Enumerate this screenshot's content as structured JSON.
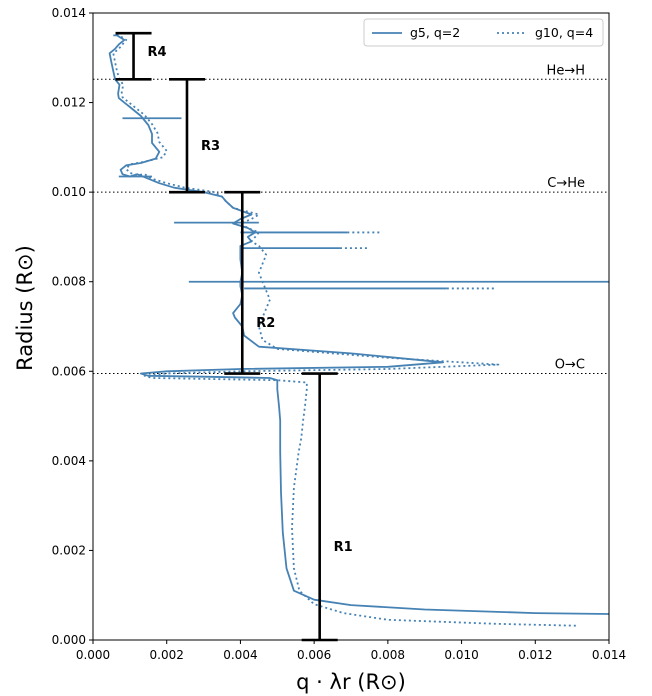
{
  "chart_data": {
    "type": "line",
    "xlabel": "q · λr (R⊙)",
    "ylabel": "Radius (R⊙)",
    "xlim": [
      0,
      0.014
    ],
    "ylim": [
      0,
      0.014
    ],
    "xticks": [
      "0.000",
      "0.002",
      "0.004",
      "0.006",
      "0.008",
      "0.010",
      "0.012",
      "0.014"
    ],
    "yticks": [
      "0.000",
      "0.002",
      "0.004",
      "0.006",
      "0.008",
      "0.010",
      "0.012",
      "0.014"
    ],
    "color": "#4682b4",
    "legend": {
      "placement": "top-right",
      "solid_label": "g5, q=2",
      "dotted_label": "g10, q=4"
    },
    "transitions": [
      {
        "label": "He→H",
        "y": 0.01252
      },
      {
        "label": "C→He",
        "y": 0.01
      },
      {
        "label": "O→C",
        "y": 0.00595
      }
    ],
    "regions": [
      {
        "label": "R1",
        "x": 0.00615,
        "y_bottom": 0.0,
        "y_top": 0.00595,
        "label_y": 0.0021
      },
      {
        "label": "R2",
        "x": 0.00405,
        "y_bottom": 0.00595,
        "y_top": 0.01,
        "label_y": 0.0071
      },
      {
        "label": "R3",
        "x": 0.00255,
        "y_bottom": 0.01,
        "y_top": 0.01252,
        "label_y": 0.01105
      },
      {
        "label": "R4",
        "x": 0.0011,
        "y_bottom": 0.01252,
        "y_top": 0.01355,
        "label_y": 0.01315
      }
    ],
    "series": [
      {
        "name": "g5, q=2",
        "style": "solid",
        "x": [
          0.014,
          0.012,
          0.009,
          0.007,
          0.006,
          0.00545,
          0.00525,
          0.00515,
          0.0051,
          0.00508,
          0.00508,
          0.00508,
          0.00505,
          0.005,
          0.005,
          0.0048,
          0.003,
          0.0015,
          0.0013,
          0.002,
          0.004,
          0.008,
          0.0095,
          0.007,
          0.0045,
          0.0041,
          0.00405,
          0.00385,
          0.0038,
          0.004,
          0.00405,
          0.004,
          0.004,
          0.00405,
          0.004,
          0.004,
          0.0043,
          0.0042,
          0.0044,
          0.0042,
          0.0038,
          0.004,
          0.0043,
          0.0038,
          0.0036,
          0.0035,
          0.003,
          0.0022,
          0.0018,
          0.0015,
          0.0012,
          0.001,
          0.0008,
          0.00075,
          0.0009,
          0.0013,
          0.0017,
          0.0018,
          0.0016,
          0.0016,
          0.0015,
          0.0014,
          0.0013,
          0.00115,
          0.001,
          0.00085,
          0.0007,
          0.00068,
          0.00072,
          0.0006,
          0.00055,
          0.0005,
          0.00045,
          0.0006,
          0.0007,
          0.00085,
          0.00075,
          0.00065,
          0.0006,
          0.00055
        ],
        "y": [
          0.00058,
          0.0006,
          0.00068,
          0.00078,
          0.0009,
          0.0011,
          0.0016,
          0.0024,
          0.0033,
          0.0042,
          0.0045,
          0.0049,
          0.0052,
          0.0056,
          0.0058,
          0.00585,
          0.00588,
          0.0059,
          0.00595,
          0.006,
          0.00605,
          0.0061,
          0.0062,
          0.0064,
          0.00655,
          0.0068,
          0.007,
          0.0072,
          0.0073,
          0.0075,
          0.0077,
          0.0079,
          0.008,
          0.0082,
          0.0085,
          0.0088,
          0.0089,
          0.009,
          0.0091,
          0.0092,
          0.0093,
          0.0094,
          0.0095,
          0.00965,
          0.0098,
          0.0099,
          0.01,
          0.0101,
          0.0102,
          0.0103,
          0.0104,
          0.01035,
          0.0104,
          0.0105,
          0.0106,
          0.01065,
          0.01075,
          0.0109,
          0.0111,
          0.0113,
          0.0115,
          0.0116,
          0.0117,
          0.0118,
          0.0119,
          0.012,
          0.0121,
          0.0122,
          0.0124,
          0.01252,
          0.0127,
          0.0129,
          0.0131,
          0.0132,
          0.0133,
          0.0134,
          0.01345,
          0.0135,
          0.0135,
          0.0135
        ]
      },
      {
        "name": "g10, q=4",
        "style": "dotted",
        "x": [
          0.0131,
          0.011,
          0.008,
          0.0068,
          0.006,
          0.0056,
          0.00545,
          0.0054,
          0.00545,
          0.00558,
          0.00565,
          0.0057,
          0.00575,
          0.0058,
          0.0058,
          0.005,
          0.003,
          0.0016,
          0.0014,
          0.002,
          0.004,
          0.008,
          0.011,
          0.008,
          0.005,
          0.0046,
          0.0045,
          0.0046,
          0.0047,
          0.0048,
          0.0047,
          0.0046,
          0.0045,
          0.0046,
          0.0047,
          0.0045,
          0.0043,
          0.0044,
          0.0045,
          0.0042,
          0.004,
          0.0043,
          0.0045,
          0.0038,
          0.0036,
          0.0035,
          0.0033,
          0.0025,
          0.002,
          0.0016,
          0.0014,
          0.0012,
          0.001,
          0.0009,
          0.001,
          0.0014,
          0.0019,
          0.002,
          0.0018,
          0.00175,
          0.0016,
          0.0015,
          0.0014,
          0.00125,
          0.0011,
          0.00095,
          0.0008,
          0.00078,
          0.00082,
          0.00072,
          0.00065,
          0.0006,
          0.00055,
          0.0007,
          0.0008,
          0.0009,
          0.0008,
          0.00072,
          0.00068,
          0.00065
        ],
        "y": [
          0.00032,
          0.00036,
          0.00045,
          0.0006,
          0.0008,
          0.0011,
          0.0016,
          0.0025,
          0.0034,
          0.0042,
          0.0045,
          0.0049,
          0.0052,
          0.0056,
          0.00575,
          0.0058,
          0.00583,
          0.00585,
          0.0059,
          0.00595,
          0.006,
          0.00605,
          0.00615,
          0.0063,
          0.0065,
          0.0067,
          0.007,
          0.0072,
          0.0074,
          0.0076,
          0.0078,
          0.008,
          0.0082,
          0.0084,
          0.0086,
          0.0088,
          0.0089,
          0.009,
          0.0091,
          0.0092,
          0.0093,
          0.0094,
          0.0095,
          0.00965,
          0.0098,
          0.0099,
          0.01,
          0.0101,
          0.0102,
          0.0103,
          0.0104,
          0.01038,
          0.01043,
          0.01052,
          0.01062,
          0.01068,
          0.01078,
          0.01092,
          0.01112,
          0.01132,
          0.01152,
          0.01162,
          0.01172,
          0.01182,
          0.01192,
          0.01202,
          0.01212,
          0.01222,
          0.0124,
          0.01252,
          0.0127,
          0.0129,
          0.0131,
          0.0132,
          0.0133,
          0.0134,
          0.01345,
          0.0135,
          0.0135,
          0.0135
        ]
      }
    ],
    "spikes": [
      {
        "style": "solid",
        "y": 0.008,
        "x_start": 0.0026,
        "x_end": 0.014
      },
      {
        "style": "solid",
        "y": 0.00785,
        "x_start": 0.0041,
        "x_end": 0.0096
      },
      {
        "style": "dotted",
        "y": 0.00785,
        "x_start": 0.0096,
        "x_end": 0.0109
      },
      {
        "style": "solid",
        "y": 0.00875,
        "x_start": 0.004,
        "x_end": 0.0067
      },
      {
        "style": "dotted",
        "y": 0.00875,
        "x_start": 0.0067,
        "x_end": 0.0075
      },
      {
        "style": "solid",
        "y": 0.0091,
        "x_start": 0.004,
        "x_end": 0.0069
      },
      {
        "style": "dotted",
        "y": 0.0091,
        "x_start": 0.0069,
        "x_end": 0.0078
      },
      {
        "style": "solid",
        "y": 0.00932,
        "x_start": 0.0022,
        "x_end": 0.0045
      },
      {
        "style": "solid",
        "y": 0.01165,
        "x_start": 0.0008,
        "x_end": 0.0024
      },
      {
        "style": "solid",
        "y": 0.01035,
        "x_start": 0.0007,
        "x_end": 0.0016
      }
    ]
  }
}
